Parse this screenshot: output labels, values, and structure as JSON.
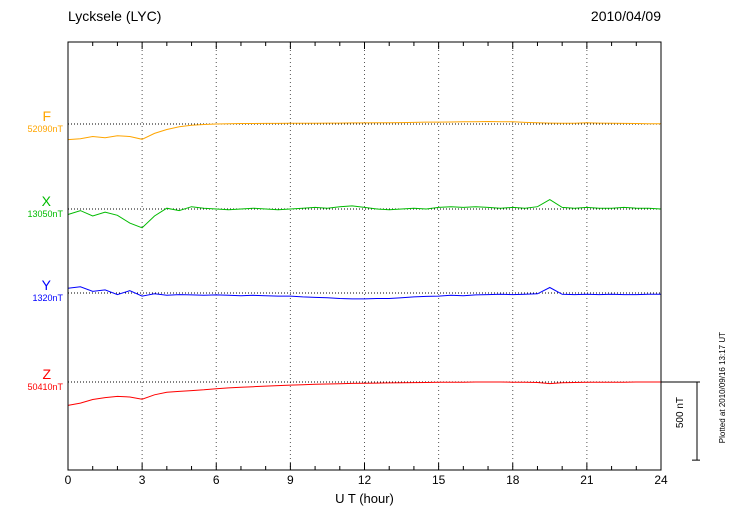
{
  "header": {
    "title": "Lycksele (LYC)",
    "date": "2010/04/09"
  },
  "axis": {
    "xlabel": "U T (hour)",
    "x_ticks": [
      0,
      3,
      6,
      9,
      12,
      15,
      18,
      21,
      24
    ]
  },
  "scale_bar": {
    "label": "500 nT",
    "nT": 500
  },
  "footnote": "Plotted at 2010/09/16 13:17 UT",
  "colors": {
    "frame": "#000000",
    "gridline": "#555555",
    "baseline": "#000000"
  },
  "chart_data": {
    "type": "line",
    "title": "Lycksele (LYC) magnetogram",
    "subtitle": "2010/04/09",
    "xlabel": "U T (hour)",
    "xlim": [
      0,
      24
    ],
    "x_step_hours": 0.5,
    "x_ticks": [
      0,
      3,
      6,
      9,
      12,
      15,
      18,
      21,
      24
    ],
    "grid": "vertical-dotted",
    "scale_bar_nT": 500,
    "series": [
      {
        "name": "F",
        "label_value": "52090nT",
        "base_nT": 52090,
        "color": "#FFA500",
        "offsets_nT": [
          -100,
          -95,
          -80,
          -88,
          -75,
          -80,
          -98,
          -60,
          -35,
          -18,
          -8,
          -3,
          0,
          2,
          3,
          3,
          4,
          4,
          5,
          5,
          5,
          6,
          6,
          7,
          7,
          8,
          8,
          9,
          10,
          12,
          12,
          13,
          14,
          15,
          16,
          15,
          14,
          10,
          8,
          6,
          5,
          5,
          8,
          6,
          5,
          4,
          3,
          2,
          2
        ]
      },
      {
        "name": "X",
        "label_value": "13050nT",
        "base_nT": 13050,
        "color": "#00BB00",
        "offsets_nT": [
          -35,
          -10,
          -45,
          -20,
          -40,
          -90,
          -120,
          -45,
          5,
          -10,
          15,
          5,
          0,
          -5,
          0,
          5,
          0,
          -5,
          0,
          5,
          10,
          5,
          15,
          20,
          10,
          0,
          -5,
          0,
          5,
          0,
          10,
          15,
          10,
          15,
          10,
          5,
          10,
          5,
          15,
          60,
          10,
          5,
          10,
          5,
          5,
          10,
          5,
          5,
          0
        ]
      },
      {
        "name": "Y",
        "label_value": "1320nT",
        "base_nT": 1320,
        "color": "#0000FF",
        "offsets_nT": [
          30,
          40,
          10,
          20,
          -10,
          15,
          -20,
          -5,
          -15,
          -10,
          -12,
          -15,
          -12,
          -15,
          -18,
          -15,
          -18,
          -20,
          -20,
          -25,
          -28,
          -30,
          -35,
          -38,
          -38,
          -35,
          -35,
          -30,
          -25,
          -22,
          -20,
          -15,
          -18,
          -12,
          -10,
          -8,
          -10,
          -8,
          -5,
          35,
          -8,
          -10,
          -8,
          -10,
          -8,
          -10,
          -10,
          -8,
          -8
        ]
      },
      {
        "name": "Z",
        "label_value": "50410nT",
        "base_nT": 50410,
        "color": "#FF0000",
        "offsets_nT": [
          -150,
          -135,
          -112,
          -100,
          -92,
          -96,
          -110,
          -82,
          -66,
          -60,
          -55,
          -50,
          -43,
          -38,
          -33,
          -30,
          -26,
          -23,
          -20,
          -18,
          -15,
          -13,
          -11,
          -9,
          -8,
          -7,
          -6,
          -5,
          -4,
          -3,
          -2,
          -2,
          -1,
          0,
          0,
          0,
          -1,
          -2,
          -3,
          -10,
          -5,
          -3,
          -2,
          -2,
          -1,
          -1,
          0,
          0,
          0
        ]
      }
    ]
  }
}
